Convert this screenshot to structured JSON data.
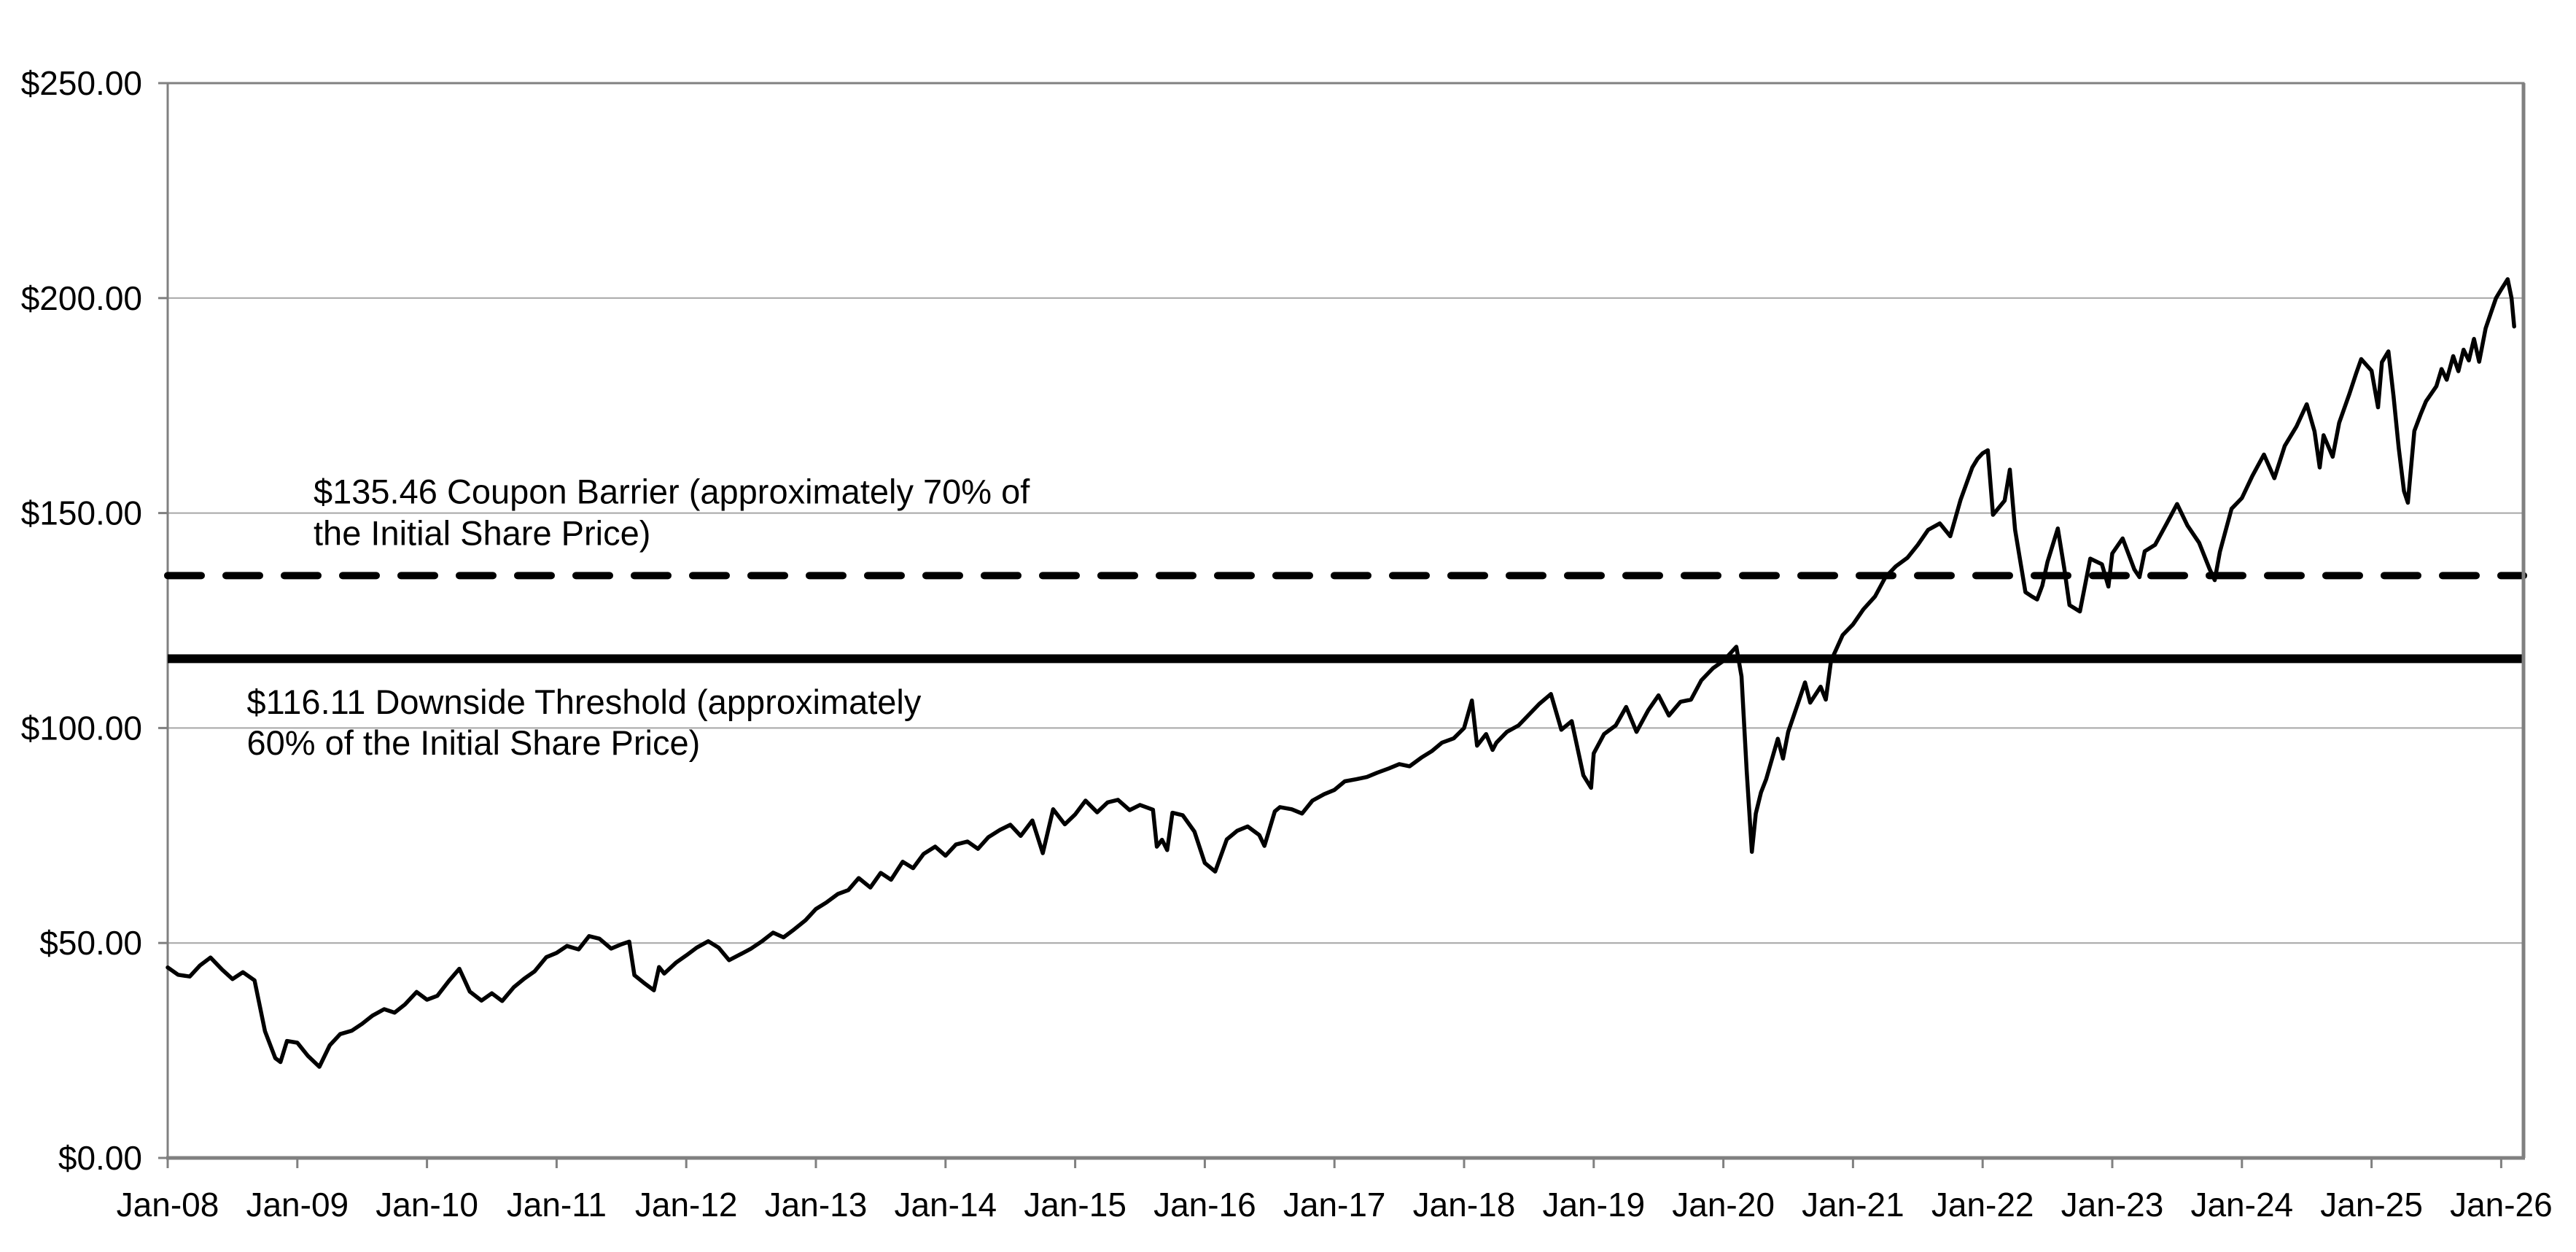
{
  "page": {
    "background_color": "#ffffff",
    "title": ""
  },
  "colors": {
    "background": "#ffffff",
    "frame": "#808080",
    "gridline": "#a6a6a6",
    "tick": "#808080",
    "series_line": "#000000",
    "reference_line": "#000000",
    "label_text": "#000000"
  },
  "chart_data": {
    "type": "line",
    "title": "",
    "xlabel": "",
    "ylabel": "",
    "legend_position": "none",
    "grid": true,
    "y_axis": {
      "min": 0,
      "max": 250,
      "step": 50,
      "tick_labels": [
        "$0.00",
        "$50.00",
        "$100.00",
        "$150.00",
        "$200.00",
        "$250.00"
      ]
    },
    "x_axis": {
      "start_year": 2008,
      "end_year": 2026,
      "tick_labels": [
        "Jan-08",
        "Jan-09",
        "Jan-10",
        "Jan-11",
        "Jan-12",
        "Jan-13",
        "Jan-14",
        "Jan-15",
        "Jan-16",
        "Jan-17",
        "Jan-18",
        "Jan-19",
        "Jan-20",
        "Jan-21",
        "Jan-22",
        "Jan-23",
        "Jan-24",
        "Jan-25",
        "Jan-26"
      ]
    },
    "reference_lines": [
      {
        "name": "coupon-barrier",
        "value": 135.46,
        "style": "dashed",
        "label_anchor_year": 2009.125,
        "label_lines": [
          {
            "text": "$135.46 Coupon Barrier (approximately 70% of",
            "anchor_price": 154.9
          },
          {
            "text": "the Initial Share Price)",
            "anchor_price": 145.3
          }
        ]
      },
      {
        "name": "downside-threshold",
        "value": 116.11,
        "style": "solid",
        "label_anchor_year": 2008.61,
        "label_lines": [
          {
            "text": "$116.11 Downside Threshold (approximately",
            "anchor_price": 106.0
          },
          {
            "text": "60% of the Initial Share Price)",
            "anchor_price": 96.5
          }
        ]
      }
    ],
    "series": [
      {
        "name": "share-price-history",
        "points": [
          [
            2008.0,
            44.3
          ],
          [
            2008.08,
            42.6
          ],
          [
            2008.17,
            42.2
          ],
          [
            2008.25,
            44.8
          ],
          [
            2008.33,
            46.6
          ],
          [
            2008.42,
            43.8
          ],
          [
            2008.5,
            41.6
          ],
          [
            2008.58,
            43.2
          ],
          [
            2008.67,
            41.3
          ],
          [
            2008.75,
            29.5
          ],
          [
            2008.83,
            23.2
          ],
          [
            2008.87,
            22.3
          ],
          [
            2008.92,
            27.2
          ],
          [
            2009.0,
            26.8
          ],
          [
            2009.08,
            23.8
          ],
          [
            2009.17,
            21.2
          ],
          [
            2009.25,
            26.2
          ],
          [
            2009.33,
            28.8
          ],
          [
            2009.42,
            29.6
          ],
          [
            2009.5,
            31.2
          ],
          [
            2009.58,
            33.1
          ],
          [
            2009.67,
            34.6
          ],
          [
            2009.75,
            33.8
          ],
          [
            2009.83,
            35.7
          ],
          [
            2009.92,
            38.6
          ],
          [
            2010.0,
            36.8
          ],
          [
            2010.08,
            37.7
          ],
          [
            2010.17,
            41.2
          ],
          [
            2010.25,
            44.0
          ],
          [
            2010.33,
            38.7
          ],
          [
            2010.42,
            36.6
          ],
          [
            2010.5,
            38.3
          ],
          [
            2010.58,
            36.5
          ],
          [
            2010.67,
            39.7
          ],
          [
            2010.75,
            41.7
          ],
          [
            2010.83,
            43.4
          ],
          [
            2010.92,
            46.7
          ],
          [
            2011.0,
            47.7
          ],
          [
            2011.08,
            49.3
          ],
          [
            2011.17,
            48.5
          ],
          [
            2011.25,
            51.6
          ],
          [
            2011.33,
            51.0
          ],
          [
            2011.42,
            48.7
          ],
          [
            2011.5,
            49.7
          ],
          [
            2011.56,
            50.3
          ],
          [
            2011.6,
            42.5
          ],
          [
            2011.67,
            40.8
          ],
          [
            2011.75,
            39.0
          ],
          [
            2011.79,
            44.4
          ],
          [
            2011.83,
            42.9
          ],
          [
            2011.92,
            45.4
          ],
          [
            2012.0,
            47.1
          ],
          [
            2012.08,
            48.9
          ],
          [
            2012.17,
            50.4
          ],
          [
            2012.25,
            48.9
          ],
          [
            2012.33,
            46.0
          ],
          [
            2012.42,
            47.4
          ],
          [
            2012.5,
            48.7
          ],
          [
            2012.58,
            50.3
          ],
          [
            2012.67,
            52.4
          ],
          [
            2012.75,
            51.3
          ],
          [
            2012.83,
            53.1
          ],
          [
            2012.92,
            55.3
          ],
          [
            2013.0,
            57.9
          ],
          [
            2013.08,
            59.4
          ],
          [
            2013.17,
            61.4
          ],
          [
            2013.25,
            62.3
          ],
          [
            2013.33,
            65.1
          ],
          [
            2013.42,
            62.9
          ],
          [
            2013.5,
            66.3
          ],
          [
            2013.58,
            64.7
          ],
          [
            2013.67,
            68.9
          ],
          [
            2013.75,
            67.4
          ],
          [
            2013.83,
            70.7
          ],
          [
            2013.92,
            72.4
          ],
          [
            2014.0,
            70.3
          ],
          [
            2014.08,
            72.9
          ],
          [
            2014.17,
            73.6
          ],
          [
            2014.25,
            71.9
          ],
          [
            2014.33,
            74.6
          ],
          [
            2014.42,
            76.3
          ],
          [
            2014.5,
            77.5
          ],
          [
            2014.58,
            74.9
          ],
          [
            2014.67,
            78.5
          ],
          [
            2014.75,
            70.9
          ],
          [
            2014.83,
            81.1
          ],
          [
            2014.92,
            77.6
          ],
          [
            2015.0,
            79.9
          ],
          [
            2015.08,
            83.1
          ],
          [
            2015.17,
            80.4
          ],
          [
            2015.25,
            82.7
          ],
          [
            2015.33,
            83.3
          ],
          [
            2015.42,
            80.9
          ],
          [
            2015.5,
            82.1
          ],
          [
            2015.6,
            81.0
          ],
          [
            2015.63,
            72.4
          ],
          [
            2015.67,
            74.0
          ],
          [
            2015.71,
            71.6
          ],
          [
            2015.75,
            80.3
          ],
          [
            2015.83,
            79.7
          ],
          [
            2015.92,
            75.9
          ],
          [
            2016.0,
            68.6
          ],
          [
            2016.08,
            66.6
          ],
          [
            2016.17,
            74.1
          ],
          [
            2016.25,
            76.1
          ],
          [
            2016.33,
            77.1
          ],
          [
            2016.42,
            75.1
          ],
          [
            2016.46,
            72.6
          ],
          [
            2016.54,
            80.6
          ],
          [
            2016.58,
            81.6
          ],
          [
            2016.67,
            81.1
          ],
          [
            2016.75,
            80.1
          ],
          [
            2016.83,
            83.1
          ],
          [
            2016.92,
            84.6
          ],
          [
            2017.0,
            85.6
          ],
          [
            2017.08,
            87.6
          ],
          [
            2017.17,
            88.1
          ],
          [
            2017.25,
            88.6
          ],
          [
            2017.33,
            89.6
          ],
          [
            2017.42,
            90.6
          ],
          [
            2017.5,
            91.6
          ],
          [
            2017.58,
            91.1
          ],
          [
            2017.67,
            93.1
          ],
          [
            2017.75,
            94.6
          ],
          [
            2017.83,
            96.6
          ],
          [
            2017.92,
            97.6
          ],
          [
            2018.0,
            100.0
          ],
          [
            2018.06,
            106.4
          ],
          [
            2018.1,
            95.9
          ],
          [
            2018.17,
            98.6
          ],
          [
            2018.22,
            94.9
          ],
          [
            2018.25,
            96.6
          ],
          [
            2018.33,
            99.1
          ],
          [
            2018.42,
            100.6
          ],
          [
            2018.5,
            103.1
          ],
          [
            2018.58,
            105.6
          ],
          [
            2018.67,
            107.9
          ],
          [
            2018.75,
            99.6
          ],
          [
            2018.83,
            101.6
          ],
          [
            2018.92,
            89.0
          ],
          [
            2018.98,
            86.1
          ],
          [
            2019.0,
            94.1
          ],
          [
            2019.08,
            98.6
          ],
          [
            2019.17,
            100.6
          ],
          [
            2019.25,
            104.9
          ],
          [
            2019.33,
            99.1
          ],
          [
            2019.42,
            104.1
          ],
          [
            2019.5,
            107.6
          ],
          [
            2019.58,
            102.9
          ],
          [
            2019.67,
            106.1
          ],
          [
            2019.75,
            106.6
          ],
          [
            2019.83,
            111.1
          ],
          [
            2019.92,
            113.9
          ],
          [
            2020.0,
            115.6
          ],
          [
            2020.1,
            118.9
          ],
          [
            2020.14,
            112.0
          ],
          [
            2020.18,
            90.0
          ],
          [
            2020.22,
            71.2
          ],
          [
            2020.25,
            80.1
          ],
          [
            2020.29,
            85.0
          ],
          [
            2020.33,
            88.1
          ],
          [
            2020.42,
            97.5
          ],
          [
            2020.46,
            92.9
          ],
          [
            2020.5,
            99.1
          ],
          [
            2020.58,
            106.1
          ],
          [
            2020.63,
            110.6
          ],
          [
            2020.67,
            105.9
          ],
          [
            2020.75,
            109.6
          ],
          [
            2020.79,
            106.6
          ],
          [
            2020.83,
            115.6
          ],
          [
            2020.92,
            121.6
          ],
          [
            2021.0,
            124.1
          ],
          [
            2021.08,
            127.6
          ],
          [
            2021.17,
            130.6
          ],
          [
            2021.25,
            135.1
          ],
          [
            2021.33,
            137.6
          ],
          [
            2021.42,
            139.6
          ],
          [
            2021.5,
            142.6
          ],
          [
            2021.58,
            146.1
          ],
          [
            2021.67,
            147.6
          ],
          [
            2021.75,
            144.6
          ],
          [
            2021.83,
            153.1
          ],
          [
            2021.92,
            160.6
          ],
          [
            2021.96,
            162.6
          ],
          [
            2022.0,
            163.9
          ],
          [
            2022.04,
            164.6
          ],
          [
            2022.08,
            149.6
          ],
          [
            2022.17,
            152.9
          ],
          [
            2022.21,
            160.1
          ],
          [
            2022.25,
            146.1
          ],
          [
            2022.33,
            131.6
          ],
          [
            2022.38,
            130.6
          ],
          [
            2022.42,
            129.9
          ],
          [
            2022.46,
            133.1
          ],
          [
            2022.5,
            138.6
          ],
          [
            2022.58,
            146.4
          ],
          [
            2022.63,
            137.1
          ],
          [
            2022.67,
            128.6
          ],
          [
            2022.75,
            127.1
          ],
          [
            2022.83,
            139.4
          ],
          [
            2022.92,
            138.1
          ],
          [
            2022.97,
            132.9
          ],
          [
            2023.0,
            140.6
          ],
          [
            2023.08,
            144.1
          ],
          [
            2023.17,
            136.9
          ],
          [
            2023.21,
            135.1
          ],
          [
            2023.25,
            141.1
          ],
          [
            2023.33,
            142.6
          ],
          [
            2023.42,
            147.6
          ],
          [
            2023.5,
            152.1
          ],
          [
            2023.58,
            147.1
          ],
          [
            2023.67,
            143.1
          ],
          [
            2023.75,
            137.0
          ],
          [
            2023.79,
            134.4
          ],
          [
            2023.83,
            141.0
          ],
          [
            2023.92,
            151.0
          ],
          [
            2024.0,
            153.5
          ],
          [
            2024.08,
            158.6
          ],
          [
            2024.17,
            163.6
          ],
          [
            2024.25,
            158.1
          ],
          [
            2024.33,
            165.6
          ],
          [
            2024.42,
            170.1
          ],
          [
            2024.5,
            175.3
          ],
          [
            2024.56,
            169.0
          ],
          [
            2024.6,
            160.6
          ],
          [
            2024.63,
            168.1
          ],
          [
            2024.7,
            163.1
          ],
          [
            2024.75,
            171.0
          ],
          [
            2024.83,
            177.8
          ],
          [
            2024.88,
            182.4
          ],
          [
            2024.92,
            185.8
          ],
          [
            2025.0,
            183.1
          ],
          [
            2025.05,
            174.6
          ],
          [
            2025.08,
            185.1
          ],
          [
            2025.13,
            187.6
          ],
          [
            2025.17,
            177.1
          ],
          [
            2025.21,
            165.1
          ],
          [
            2025.25,
            155.1
          ],
          [
            2025.28,
            152.4
          ],
          [
            2025.33,
            169.1
          ],
          [
            2025.38,
            173.1
          ],
          [
            2025.42,
            176.0
          ],
          [
            2025.5,
            179.5
          ],
          [
            2025.54,
            183.5
          ],
          [
            2025.58,
            181.0
          ],
          [
            2025.63,
            186.5
          ],
          [
            2025.67,
            183.0
          ],
          [
            2025.71,
            188.0
          ],
          [
            2025.75,
            185.5
          ],
          [
            2025.79,
            190.5
          ],
          [
            2025.83,
            185.2
          ],
          [
            2025.88,
            193.0
          ],
          [
            2025.92,
            196.5
          ],
          [
            2025.96,
            200.0
          ],
          [
            2026.0,
            202.0
          ],
          [
            2026.05,
            204.4
          ],
          [
            2026.08,
            200.0
          ],
          [
            2026.1,
            193.4
          ]
        ]
      }
    ]
  }
}
